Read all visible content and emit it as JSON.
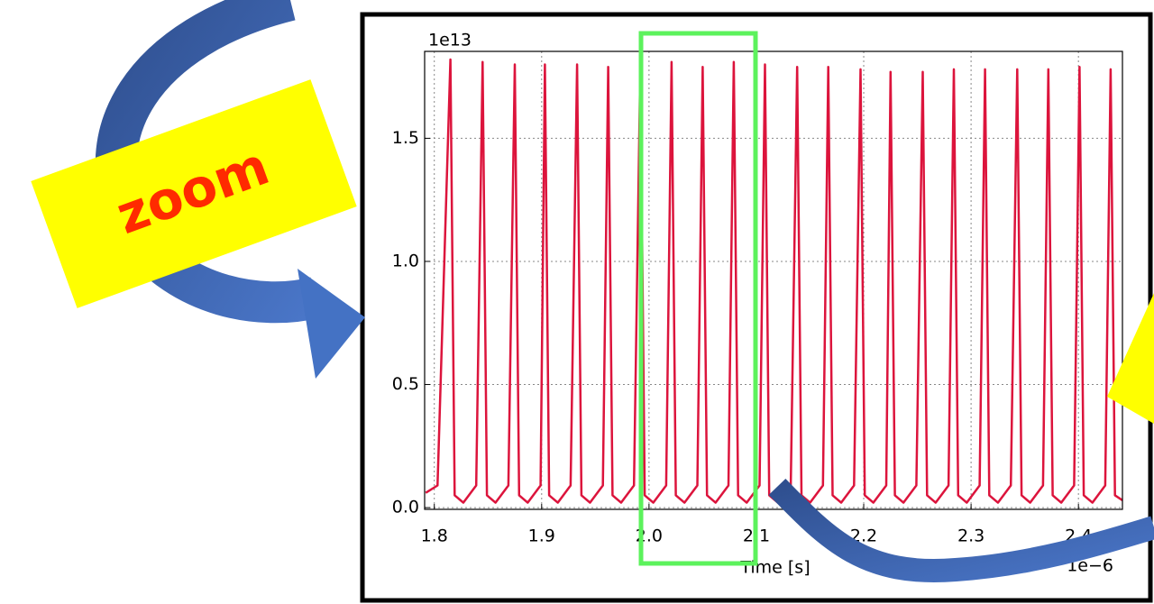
{
  "chart_data": {
    "type": "line",
    "annotation": "zoom",
    "xlabel": "Time [s]",
    "x_offset_label": "1e−6",
    "y_offset_label": "1e13",
    "xlim": [
      1.791,
      2.441
    ],
    "ylim": [
      -0.007,
      1.853
    ],
    "xticks": [
      1.8,
      1.9,
      {
        "value": 2,
        "label": "2.0"
      },
      2.1,
      2.2,
      2.3,
      2.4
    ],
    "yticks": [
      {
        "value": 0,
        "label": "0.0"
      },
      0.5,
      {
        "value": 1,
        "label": "1.0"
      },
      1.5
    ],
    "grid": true,
    "series": [
      {
        "color": "#dc143c",
        "x": [
          1.792,
          1.803,
          1.815,
          1.819,
          1.827,
          1.839,
          1.845,
          1.849,
          1.857,
          1.869,
          1.875,
          1.879,
          1.887,
          1.899,
          1.903,
          1.907,
          1.915,
          1.927,
          1.933,
          1.937,
          1.945,
          1.957,
          1.962,
          1.966,
          1.974,
          1.986,
          1.992,
          1.996,
          2.004,
          2.016,
          2.021,
          2.025,
          2.033,
          2.045,
          2.05,
          2.054,
          2.062,
          2.074,
          2.079,
          2.083,
          2.091,
          2.103,
          2.108,
          2.112,
          2.12,
          2.132,
          2.138,
          2.142,
          2.15,
          2.162,
          2.167,
          2.171,
          2.179,
          2.191,
          2.197,
          2.201,
          2.209,
          2.221,
          2.225,
          2.229,
          2.237,
          2.249,
          2.255,
          2.259,
          2.267,
          2.279,
          2.284,
          2.288,
          2.296,
          2.308,
          2.313,
          2.317,
          2.325,
          2.337,
          2.343,
          2.347,
          2.355,
          2.367,
          2.372,
          2.376,
          2.384,
          2.396,
          2.401,
          2.405,
          2.413,
          2.425,
          2.43,
          2.434,
          2.441
        ],
        "values": [
          0.06,
          0.09,
          1.82,
          0.05,
          0.02,
          0.09,
          1.81,
          0.05,
          0.02,
          0.09,
          1.8,
          0.05,
          0.02,
          0.09,
          1.8,
          0.05,
          0.02,
          0.09,
          1.8,
          0.05,
          0.02,
          0.09,
          1.79,
          0.05,
          0.02,
          0.09,
          1.81,
          0.05,
          0.02,
          0.09,
          1.81,
          0.05,
          0.02,
          0.09,
          1.79,
          0.05,
          0.02,
          0.09,
          1.81,
          0.05,
          0.02,
          0.09,
          1.8,
          0.05,
          0.02,
          0.09,
          1.79,
          0.05,
          0.02,
          0.09,
          1.79,
          0.05,
          0.02,
          0.09,
          1.78,
          0.05,
          0.02,
          0.09,
          1.77,
          0.05,
          0.02,
          0.09,
          1.77,
          0.05,
          0.02,
          0.09,
          1.78,
          0.05,
          0.02,
          0.09,
          1.78,
          0.05,
          0.02,
          0.09,
          1.78,
          0.05,
          0.02,
          0.09,
          1.78,
          0.05,
          0.02,
          0.09,
          1.79,
          0.05,
          0.02,
          0.09,
          1.78,
          0.05,
          0.03
        ]
      }
    ]
  }
}
